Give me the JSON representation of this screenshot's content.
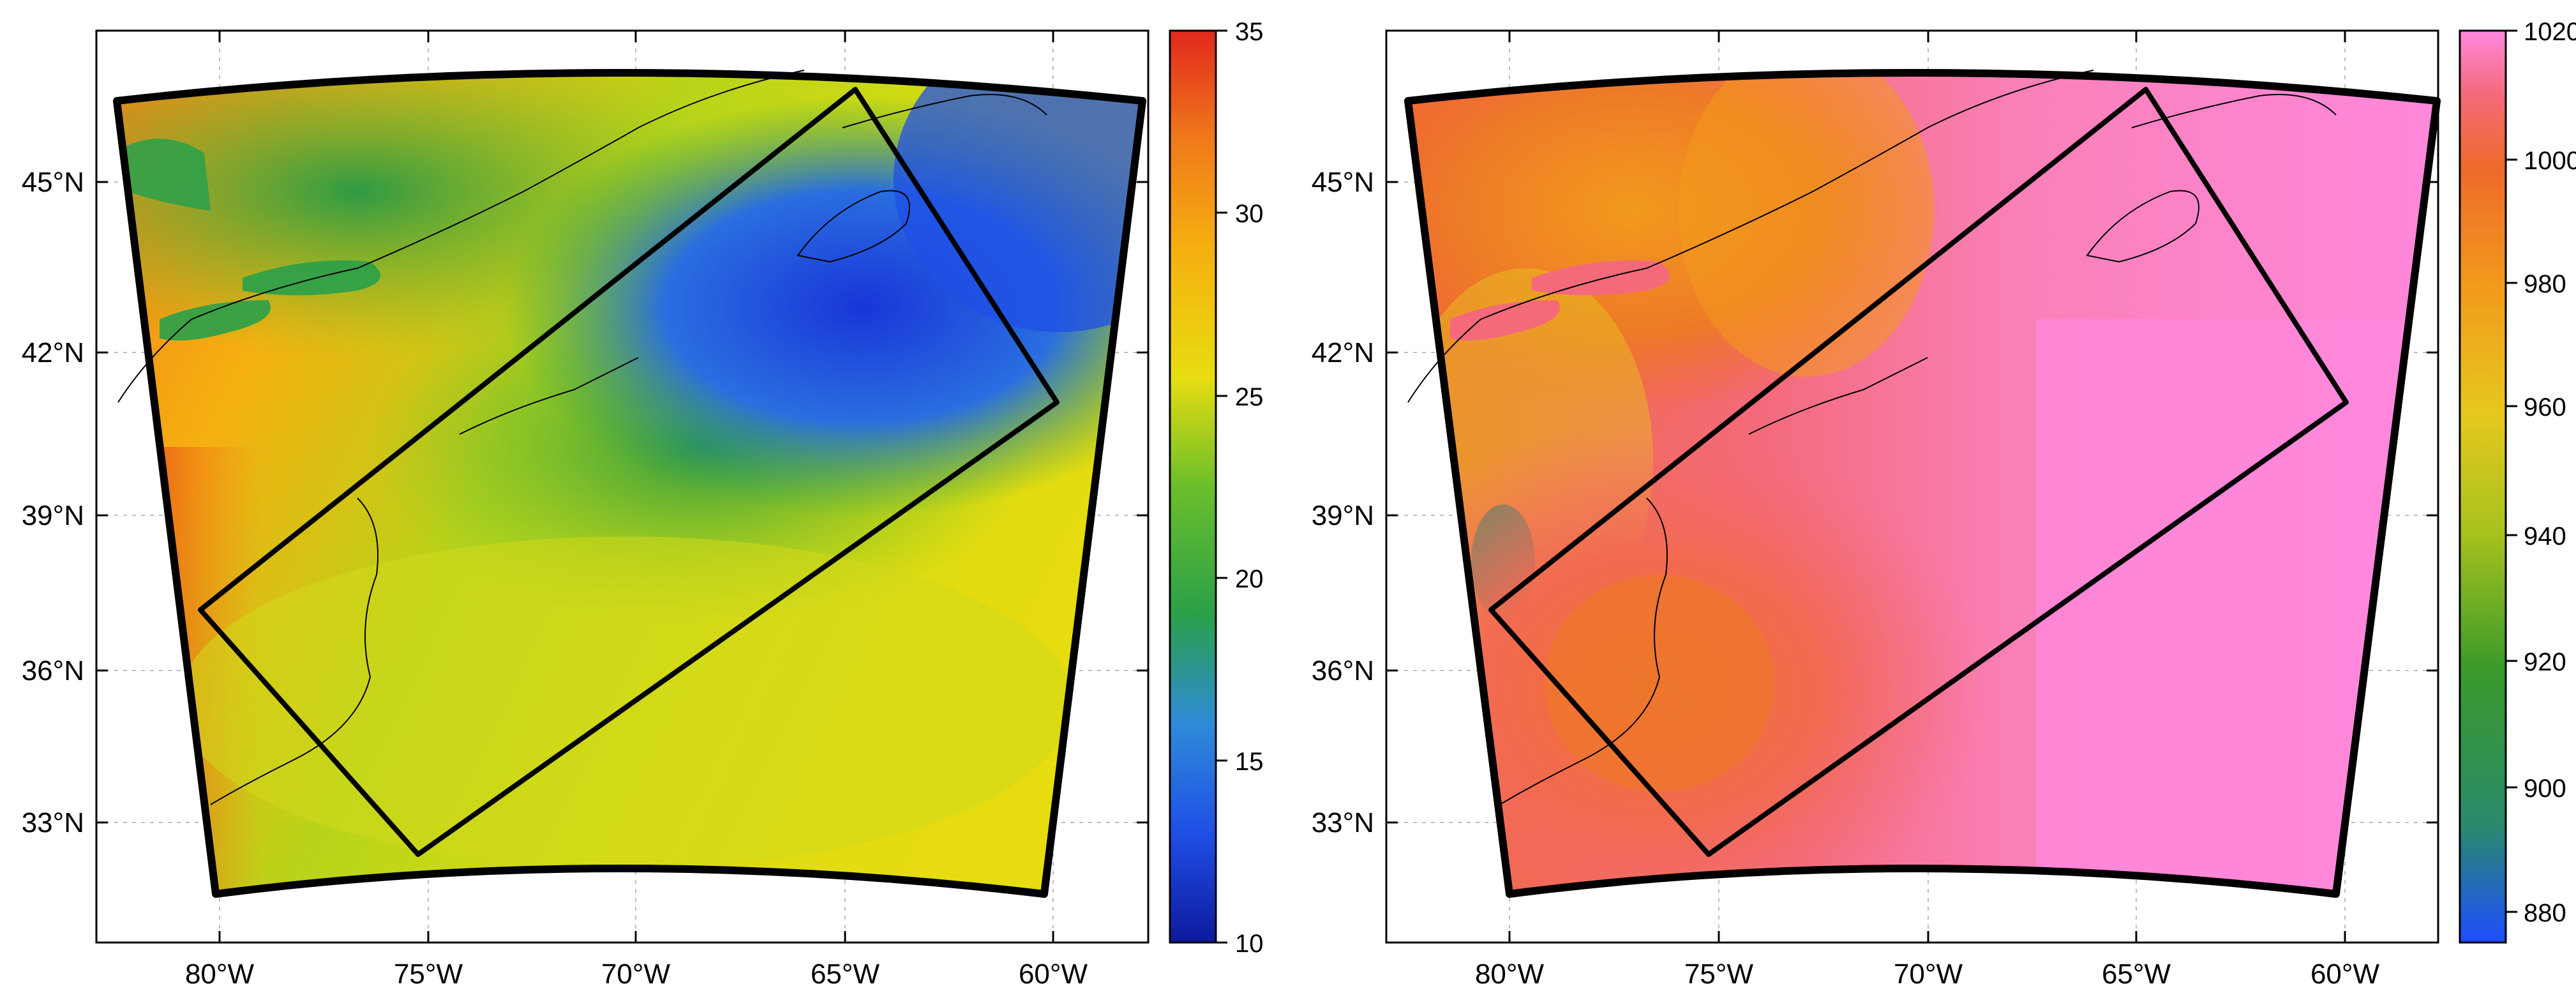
{
  "panels": [
    {
      "id": "left",
      "lat_labels": [
        "45°N",
        "42°N",
        "39°N",
        "36°N",
        "33°N"
      ],
      "lon_labels": [
        "80°W",
        "75°W",
        "70°W",
        "65°W",
        "60°W"
      ],
      "colorbar": {
        "min": 10,
        "max": 35,
        "tick_labels": [
          "35",
          "30",
          "25",
          "20",
          "15",
          "10"
        ],
        "colormap": [
          "#0d1a9e",
          "#1f4fe6",
          "#2e8bd8",
          "#2aa04a",
          "#6bbf2a",
          "#e8dd10",
          "#f5b010",
          "#f07a1a",
          "#e2281e"
        ]
      }
    },
    {
      "id": "right",
      "lat_labels": [
        "45°N",
        "42°N",
        "39°N",
        "36°N",
        "33°N"
      ],
      "lon_labels": [
        "80°W",
        "75°W",
        "70°W",
        "65°W",
        "60°W"
      ],
      "colorbar": {
        "min": 870,
        "max": 1020,
        "tick_labels": [
          "1020",
          "1000",
          "980",
          "960",
          "940",
          "920",
          "900",
          "880"
        ],
        "colormap": [
          "#1e4dff",
          "#2a8a6a",
          "#3a9a2a",
          "#a8c21e",
          "#e6c81e",
          "#f29a1c",
          "#ee6a2a",
          "#f46a7a",
          "#ff88dd"
        ]
      }
    }
  ]
}
